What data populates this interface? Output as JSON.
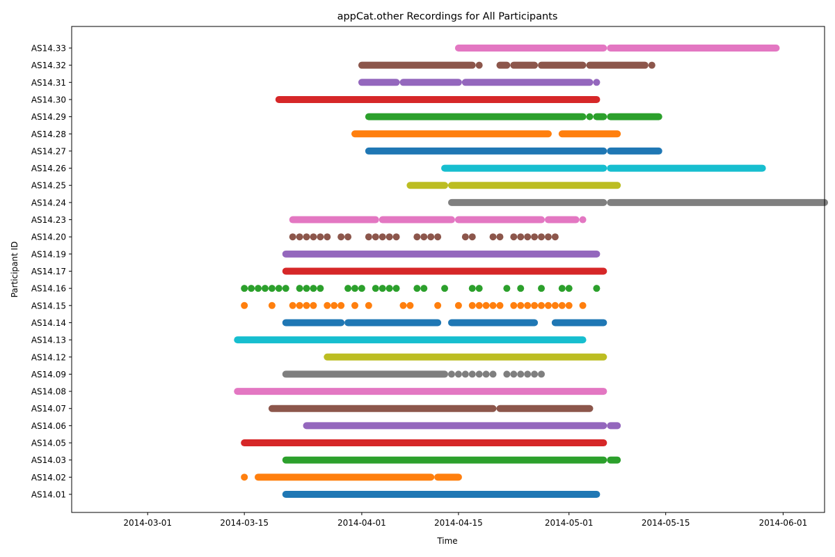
{
  "chart_data": {
    "type": "scatter",
    "title": "appCat.other Recordings for All Participants",
    "xlabel": "Time",
    "ylabel": "Participant ID",
    "x_range": [
      "2014-02-18",
      "2014-06-07"
    ],
    "x_ticks": [
      "2014-03-01",
      "2014-03-15",
      "2014-04-01",
      "2014-04-15",
      "2014-05-01",
      "2014-05-15",
      "2014-06-01"
    ],
    "grid": false,
    "legend": "none",
    "categories": [
      "AS14.01",
      "AS14.02",
      "AS14.03",
      "AS14.05",
      "AS14.06",
      "AS14.07",
      "AS14.08",
      "AS14.09",
      "AS14.12",
      "AS14.13",
      "AS14.14",
      "AS14.15",
      "AS14.16",
      "AS14.17",
      "AS14.19",
      "AS14.20",
      "AS14.23",
      "AS14.24",
      "AS14.25",
      "AS14.26",
      "AS14.27",
      "AS14.28",
      "AS14.29",
      "AS14.30",
      "AS14.31",
      "AS14.32",
      "AS14.33"
    ],
    "series": [
      {
        "category": "AS14.01",
        "color": "#1f77b4",
        "segments": [
          [
            "2014-03-21",
            "2014-05-05"
          ]
        ],
        "points": []
      },
      {
        "category": "AS14.02",
        "color": "#ff7f0e",
        "segments": [
          [
            "2014-03-17",
            "2014-04-11"
          ],
          [
            "2014-04-12",
            "2014-04-15"
          ]
        ],
        "points": [
          "2014-03-15"
        ]
      },
      {
        "category": "AS14.03",
        "color": "#2ca02c",
        "segments": [
          [
            "2014-03-21",
            "2014-05-06"
          ],
          [
            "2014-05-07",
            "2014-05-08"
          ]
        ],
        "points": []
      },
      {
        "category": "AS14.05",
        "color": "#d62728",
        "segments": [
          [
            "2014-03-15",
            "2014-05-06"
          ]
        ],
        "points": []
      },
      {
        "category": "AS14.06",
        "color": "#9467bd",
        "segments": [
          [
            "2014-03-24",
            "2014-05-06"
          ],
          [
            "2014-05-07",
            "2014-05-08"
          ]
        ],
        "points": []
      },
      {
        "category": "AS14.07",
        "color": "#8c564b",
        "segments": [
          [
            "2014-03-19",
            "2014-04-20"
          ],
          [
            "2014-04-21",
            "2014-05-04"
          ]
        ],
        "points": []
      },
      {
        "category": "AS14.08",
        "color": "#e377c2",
        "segments": [
          [
            "2014-03-14",
            "2014-05-06"
          ]
        ],
        "points": []
      },
      {
        "category": "AS14.09",
        "color": "#7f7f7f",
        "segments": [
          [
            "2014-03-21",
            "2014-04-13"
          ]
        ],
        "points": [
          "2014-04-14",
          "2014-04-15",
          "2014-04-16",
          "2014-04-17",
          "2014-04-18",
          "2014-04-19",
          "2014-04-20",
          "2014-04-22",
          "2014-04-23",
          "2014-04-24",
          "2014-04-25",
          "2014-04-26",
          "2014-04-27"
        ]
      },
      {
        "category": "AS14.12",
        "color": "#bcbd22",
        "segments": [
          [
            "2014-03-27",
            "2014-05-06"
          ]
        ],
        "points": []
      },
      {
        "category": "AS14.13",
        "color": "#17becf",
        "segments": [
          [
            "2014-03-14",
            "2014-05-03"
          ]
        ],
        "points": []
      },
      {
        "category": "AS14.14",
        "color": "#1f77b4",
        "segments": [
          [
            "2014-03-21",
            "2014-03-29"
          ],
          [
            "2014-03-30",
            "2014-04-12"
          ],
          [
            "2014-04-14",
            "2014-04-26"
          ],
          [
            "2014-04-29",
            "2014-05-06"
          ]
        ],
        "points": []
      },
      {
        "category": "AS14.15",
        "color": "#ff7f0e",
        "points": [
          "2014-03-15",
          "2014-03-19",
          "2014-03-22",
          "2014-03-23",
          "2014-03-24",
          "2014-03-25",
          "2014-03-27",
          "2014-03-28",
          "2014-03-29",
          "2014-03-31",
          "2014-04-02",
          "2014-04-07",
          "2014-04-08",
          "2014-04-12",
          "2014-04-15",
          "2014-04-17",
          "2014-04-18",
          "2014-04-19",
          "2014-04-20",
          "2014-04-21",
          "2014-04-23",
          "2014-04-24",
          "2014-04-25",
          "2014-04-26",
          "2014-04-27",
          "2014-04-28",
          "2014-04-29",
          "2014-04-30",
          "2014-05-01",
          "2014-05-03"
        ]
      },
      {
        "category": "AS14.16",
        "color": "#2ca02c",
        "points": [
          "2014-03-15",
          "2014-03-16",
          "2014-03-17",
          "2014-03-18",
          "2014-03-19",
          "2014-03-20",
          "2014-03-21",
          "2014-03-23",
          "2014-03-24",
          "2014-03-25",
          "2014-03-26",
          "2014-03-30",
          "2014-03-31",
          "2014-04-01",
          "2014-04-03",
          "2014-04-04",
          "2014-04-05",
          "2014-04-06",
          "2014-04-09",
          "2014-04-10",
          "2014-04-13",
          "2014-04-17",
          "2014-04-18",
          "2014-04-22",
          "2014-04-24",
          "2014-04-27",
          "2014-04-30",
          "2014-05-01",
          "2014-05-05"
        ]
      },
      {
        "category": "AS14.17",
        "color": "#d62728",
        "segments": [
          [
            "2014-03-21",
            "2014-05-06"
          ]
        ],
        "points": []
      },
      {
        "category": "AS14.19",
        "color": "#9467bd",
        "segments": [
          [
            "2014-03-21",
            "2014-05-05"
          ]
        ],
        "points": []
      },
      {
        "category": "AS14.20",
        "color": "#8c564b",
        "points": [
          "2014-03-22",
          "2014-03-23",
          "2014-03-24",
          "2014-03-25",
          "2014-03-26",
          "2014-03-27",
          "2014-03-29",
          "2014-03-30",
          "2014-04-02",
          "2014-04-03",
          "2014-04-04",
          "2014-04-05",
          "2014-04-06",
          "2014-04-09",
          "2014-04-10",
          "2014-04-11",
          "2014-04-12",
          "2014-04-16",
          "2014-04-17",
          "2014-04-20",
          "2014-04-21",
          "2014-04-23",
          "2014-04-24",
          "2014-04-25",
          "2014-04-26",
          "2014-04-27",
          "2014-04-28",
          "2014-04-29"
        ]
      },
      {
        "category": "AS14.23",
        "color": "#e377c2",
        "segments": [
          [
            "2014-03-22",
            "2014-04-03"
          ],
          [
            "2014-04-04",
            "2014-04-14"
          ],
          [
            "2014-04-15",
            "2014-04-27"
          ],
          [
            "2014-04-28",
            "2014-05-02"
          ]
        ],
        "points": [
          "2014-05-03"
        ]
      },
      {
        "category": "AS14.24",
        "color": "#7f7f7f",
        "segments": [
          [
            "2014-04-14",
            "2014-05-06"
          ],
          [
            "2014-05-07",
            "2014-06-07"
          ]
        ],
        "points": []
      },
      {
        "category": "AS14.25",
        "color": "#bcbd22",
        "segments": [
          [
            "2014-04-08",
            "2014-04-13"
          ],
          [
            "2014-04-14",
            "2014-05-08"
          ]
        ],
        "points": []
      },
      {
        "category": "AS14.26",
        "color": "#17becf",
        "segments": [
          [
            "2014-04-13",
            "2014-05-06"
          ],
          [
            "2014-05-07",
            "2014-05-29"
          ]
        ],
        "points": []
      },
      {
        "category": "AS14.27",
        "color": "#1f77b4",
        "segments": [
          [
            "2014-04-02",
            "2014-05-06"
          ],
          [
            "2014-05-07",
            "2014-05-14"
          ]
        ],
        "points": []
      },
      {
        "category": "AS14.28",
        "color": "#ff7f0e",
        "segments": [
          [
            "2014-03-31",
            "2014-04-28"
          ],
          [
            "2014-04-30",
            "2014-05-08"
          ]
        ],
        "points": []
      },
      {
        "category": "AS14.29",
        "color": "#2ca02c",
        "segments": [
          [
            "2014-04-02",
            "2014-05-03"
          ],
          [
            "2014-05-05",
            "2014-05-06"
          ],
          [
            "2014-05-07",
            "2014-05-14"
          ]
        ],
        "points": [
          "2014-05-04"
        ]
      },
      {
        "category": "AS14.30",
        "color": "#d62728",
        "segments": [
          [
            "2014-03-20",
            "2014-05-05"
          ]
        ],
        "points": []
      },
      {
        "category": "AS14.31",
        "color": "#9467bd",
        "segments": [
          [
            "2014-04-01",
            "2014-04-06"
          ],
          [
            "2014-04-07",
            "2014-04-15"
          ],
          [
            "2014-04-16",
            "2014-05-04"
          ]
        ],
        "points": [
          "2014-05-05"
        ]
      },
      {
        "category": "AS14.32",
        "color": "#8c564b",
        "segments": [
          [
            "2014-04-01",
            "2014-04-17"
          ],
          [
            "2014-04-21",
            "2014-04-22"
          ],
          [
            "2014-04-23",
            "2014-04-26"
          ],
          [
            "2014-04-27",
            "2014-05-03"
          ],
          [
            "2014-05-04",
            "2014-05-12"
          ]
        ],
        "points": [
          "2014-04-18",
          "2014-05-13"
        ]
      },
      {
        "category": "AS14.33",
        "color": "#e377c2",
        "segments": [
          [
            "2014-04-15",
            "2014-05-06"
          ],
          [
            "2014-05-07",
            "2014-05-31"
          ]
        ],
        "points": []
      }
    ]
  }
}
